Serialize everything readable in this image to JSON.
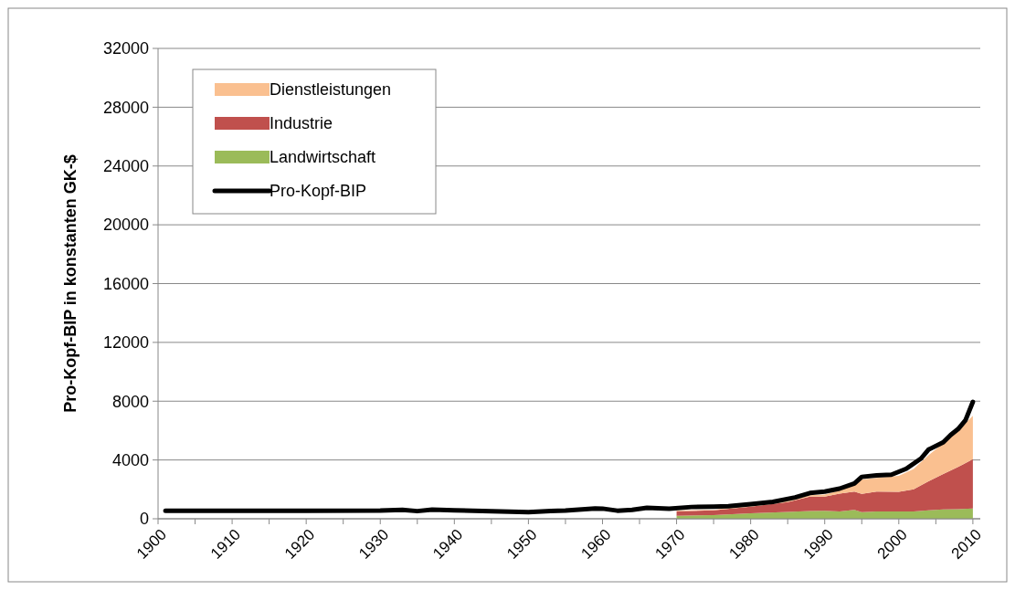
{
  "chart_data": {
    "type": "area",
    "stacked": true,
    "ylabel": "Pro-Kopf-BIP in konstanten GK-$",
    "x": [
      1970,
      1975,
      1980,
      1985,
      1988,
      1990,
      1992,
      1994,
      1995,
      1997,
      2000,
      2002,
      2004,
      2006,
      2008,
      2010
    ],
    "series": [
      {
        "name": "Landwirtschaft",
        "color": "#9bbb59",
        "values": [
          200,
          250,
          370,
          470,
          530,
          550,
          490,
          600,
          450,
          500,
          490,
          500,
          580,
          640,
          660,
          700
        ]
      },
      {
        "name": "Industrie",
        "color": "#c0504d",
        "values": [
          310,
          320,
          450,
          660,
          970,
          950,
          1220,
          1250,
          1240,
          1350,
          1340,
          1500,
          1970,
          2410,
          2860,
          3350
        ]
      },
      {
        "name": "Dienstleistungen",
        "color": "#fac090",
        "values": [
          60,
          40,
          110,
          150,
          100,
          140,
          220,
          520,
          980,
          930,
          1090,
          1390,
          1770,
          2090,
          2490,
          2950
        ]
      },
      {
        "name": "Pro-Kopf-BIP",
        "type": "line",
        "color": "#000000",
        "x": [
          1901,
          1910,
          1920,
          1930,
          1933,
          1935,
          1937,
          1940,
          1945,
          1950,
          1953,
          1955,
          1959,
          1960,
          1962,
          1964,
          1966,
          1969,
          1972,
          1975,
          1977,
          1980,
          1983,
          1986,
          1988,
          1990,
          1992,
          1994,
          1995,
          1997,
          1999,
          2001,
          2003,
          2004,
          2006,
          2007,
          2008,
          2009,
          2010
        ],
        "values": [
          550,
          550,
          540,
          560,
          600,
          520,
          620,
          580,
          520,
          450,
          530,
          560,
          700,
          690,
          550,
          600,
          740,
          680,
          800,
          830,
          850,
          1000,
          1150,
          1450,
          1750,
          1850,
          2050,
          2400,
          2850,
          2950,
          3000,
          3400,
          4100,
          4700,
          5200,
          5700,
          6100,
          6700,
          7950
        ]
      }
    ],
    "xlim": [
      1900,
      2011
    ],
    "xticks": [
      1900,
      {
        "value": 1905,
        "label": null
      },
      1910,
      {
        "value": 1915,
        "label": null
      },
      1920,
      {
        "value": 1925,
        "label": null
      },
      1930,
      {
        "value": 1935,
        "label": null
      },
      1940,
      {
        "value": 1945,
        "label": null
      },
      1950,
      {
        "value": 1955,
        "label": null
      },
      1960,
      {
        "value": 1965,
        "label": null
      },
      1970,
      {
        "value": 1975,
        "label": null
      },
      1980,
      {
        "value": 1985,
        "label": null
      },
      1990,
      {
        "value": 1995,
        "label": null
      },
      2000,
      {
        "value": 2005,
        "label": null
      },
      2010
    ],
    "ylim": [
      0,
      32000
    ],
    "yticks": [
      0,
      4000,
      8000,
      12000,
      16000,
      20000,
      24000,
      28000,
      32000
    ],
    "grid": "y",
    "legend": "top left"
  }
}
